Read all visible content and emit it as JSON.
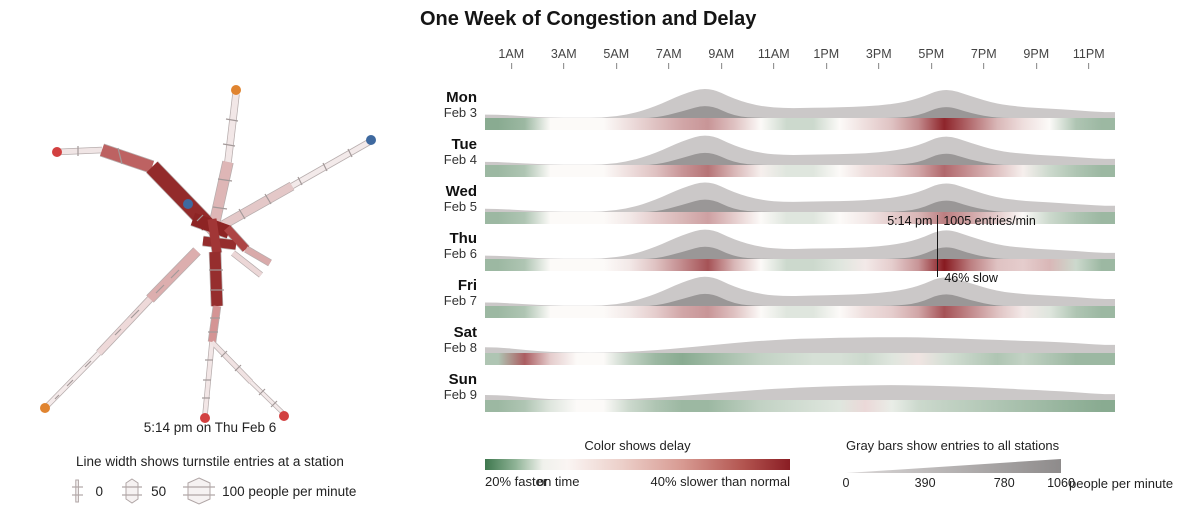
{
  "map": {
    "caption": "5:14 pm on Thu Feb 6",
    "legend_title": "Line width shows turnstile entries at a station",
    "legend_items": [
      "0",
      "50",
      "100 people per minute"
    ],
    "line_colors": {
      "orange": "#e08430",
      "blue": "#3e699f",
      "red": "#d24040"
    },
    "delay_colors": {
      "slow_dark": "#8d2424",
      "slow_medium": "#bd6262",
      "near_normal": "#f2e7e7"
    }
  },
  "chart_data": {
    "type": "area",
    "title": "One Week of Congestion and Delay",
    "x_unit": "hour of day",
    "x_range": [
      0,
      24
    ],
    "time_labels": [
      "1AM",
      "3AM",
      "5AM",
      "7AM",
      "9AM",
      "11AM",
      "1PM",
      "3PM",
      "5PM",
      "7PM",
      "9PM",
      "11PM"
    ],
    "entries_unit": "people per minute",
    "entries_range": [
      0,
      1060
    ],
    "delay_unit": "percent slower than normal",
    "delay_range": [
      -20,
      40
    ],
    "days": [
      {
        "label": "Mon",
        "date": "Feb 3",
        "entries": [
          110,
          55,
          12,
          5,
          10,
          110,
          370,
          760,
          1010,
          600,
          370,
          310,
          330,
          340,
          370,
          440,
          610,
          980,
          700,
          450,
          350,
          300,
          250,
          190
        ],
        "delay_pct": [
          -12,
          -10,
          0,
          0,
          0,
          5,
          10,
          15,
          18,
          10,
          0,
          -5,
          -5,
          0,
          5,
          10,
          20,
          38,
          25,
          12,
          5,
          0,
          -8,
          -10
        ]
      },
      {
        "label": "Tue",
        "date": "Feb 4",
        "entries": [
          100,
          50,
          12,
          5,
          10,
          115,
          380,
          770,
          1020,
          610,
          375,
          315,
          335,
          345,
          375,
          445,
          615,
          990,
          710,
          455,
          355,
          305,
          255,
          195
        ],
        "delay_pct": [
          -10,
          -8,
          0,
          0,
          0,
          5,
          10,
          18,
          24,
          12,
          2,
          -3,
          -3,
          0,
          5,
          8,
          15,
          26,
          18,
          10,
          2,
          -5,
          -8,
          -10
        ]
      },
      {
        "label": "Wed",
        "date": "Feb 5",
        "entries": [
          105,
          52,
          12,
          5,
          10,
          118,
          385,
          775,
          1025,
          615,
          378,
          318,
          338,
          348,
          378,
          448,
          618,
          995,
          715,
          458,
          358,
          308,
          258,
          198
        ],
        "delay_pct": [
          -10,
          -8,
          0,
          0,
          0,
          3,
          8,
          12,
          16,
          8,
          0,
          -3,
          -3,
          0,
          3,
          8,
          12,
          22,
          15,
          8,
          0,
          -5,
          -8,
          -10
        ]
      },
      {
        "label": "Thu",
        "date": "Feb 6",
        "entries": [
          108,
          54,
          12,
          5,
          10,
          116,
          382,
          772,
          1022,
          612,
          376,
          316,
          336,
          346,
          376,
          446,
          616,
          1005,
          712,
          456,
          356,
          306,
          256,
          196
        ],
        "delay_pct": [
          -10,
          -8,
          0,
          0,
          0,
          3,
          10,
          20,
          30,
          12,
          0,
          -5,
          -5,
          -3,
          3,
          8,
          18,
          46,
          22,
          10,
          8,
          12,
          -5,
          -10
        ]
      },
      {
        "label": "Fri",
        "date": "Feb 7",
        "entries": [
          112,
          58,
          14,
          6,
          10,
          114,
          378,
          768,
          1015,
          605,
          372,
          312,
          340,
          355,
          385,
          455,
          625,
          1000,
          730,
          480,
          380,
          330,
          285,
          225
        ],
        "delay_pct": [
          -10,
          -8,
          0,
          0,
          0,
          3,
          8,
          15,
          18,
          10,
          0,
          -3,
          -3,
          0,
          5,
          8,
          15,
          30,
          20,
          10,
          3,
          -3,
          -8,
          -10
        ]
      },
      {
        "label": "Sat",
        "date": "Feb 8",
        "entries": [
          185,
          100,
          30,
          8,
          8,
          40,
          90,
          160,
          240,
          320,
          390,
          440,
          470,
          490,
          500,
          510,
          500,
          480,
          450,
          420,
          390,
          360,
          320,
          260
        ],
        "delay_pct": [
          -8,
          28,
          8,
          0,
          0,
          -6,
          -10,
          -12,
          -10,
          -8,
          -6,
          -5,
          -4,
          -4,
          -5,
          -3,
          4,
          -4,
          -6,
          -8,
          -6,
          -8,
          -10,
          -10
        ]
      },
      {
        "label": "Sun",
        "date": "Feb 9",
        "entries": [
          160,
          90,
          25,
          6,
          6,
          30,
          70,
          130,
          200,
          270,
          330,
          380,
          420,
          450,
          470,
          480,
          470,
          450,
          420,
          380,
          340,
          300,
          250,
          190
        ],
        "delay_pct": [
          -10,
          -8,
          -3,
          0,
          0,
          -5,
          -8,
          -10,
          -10,
          -8,
          -6,
          -5,
          -4,
          -3,
          6,
          -2,
          -5,
          -6,
          -7,
          -8,
          -9,
          -10,
          -11,
          -12
        ]
      }
    ],
    "annotation": {
      "day": "Thu",
      "hour": 17.233,
      "time_label": "5:14 pm",
      "entries_label": "1005 entries/min",
      "delay_label": "46% slow"
    }
  },
  "legends": {
    "delay": {
      "title": "Color shows delay",
      "left_label": "20% faster",
      "mid_label": "on time",
      "right_label": "40% slower than normal",
      "green": "#3e774e",
      "red": "#8a1d24"
    },
    "entries": {
      "title": "Gray bars show entries to all stations",
      "ticks": [
        "0",
        "390",
        "780",
        "1060"
      ],
      "unit": "people per minute",
      "gray_light": "#dcd9d9",
      "gray_dark": "#8e8b8b"
    }
  }
}
